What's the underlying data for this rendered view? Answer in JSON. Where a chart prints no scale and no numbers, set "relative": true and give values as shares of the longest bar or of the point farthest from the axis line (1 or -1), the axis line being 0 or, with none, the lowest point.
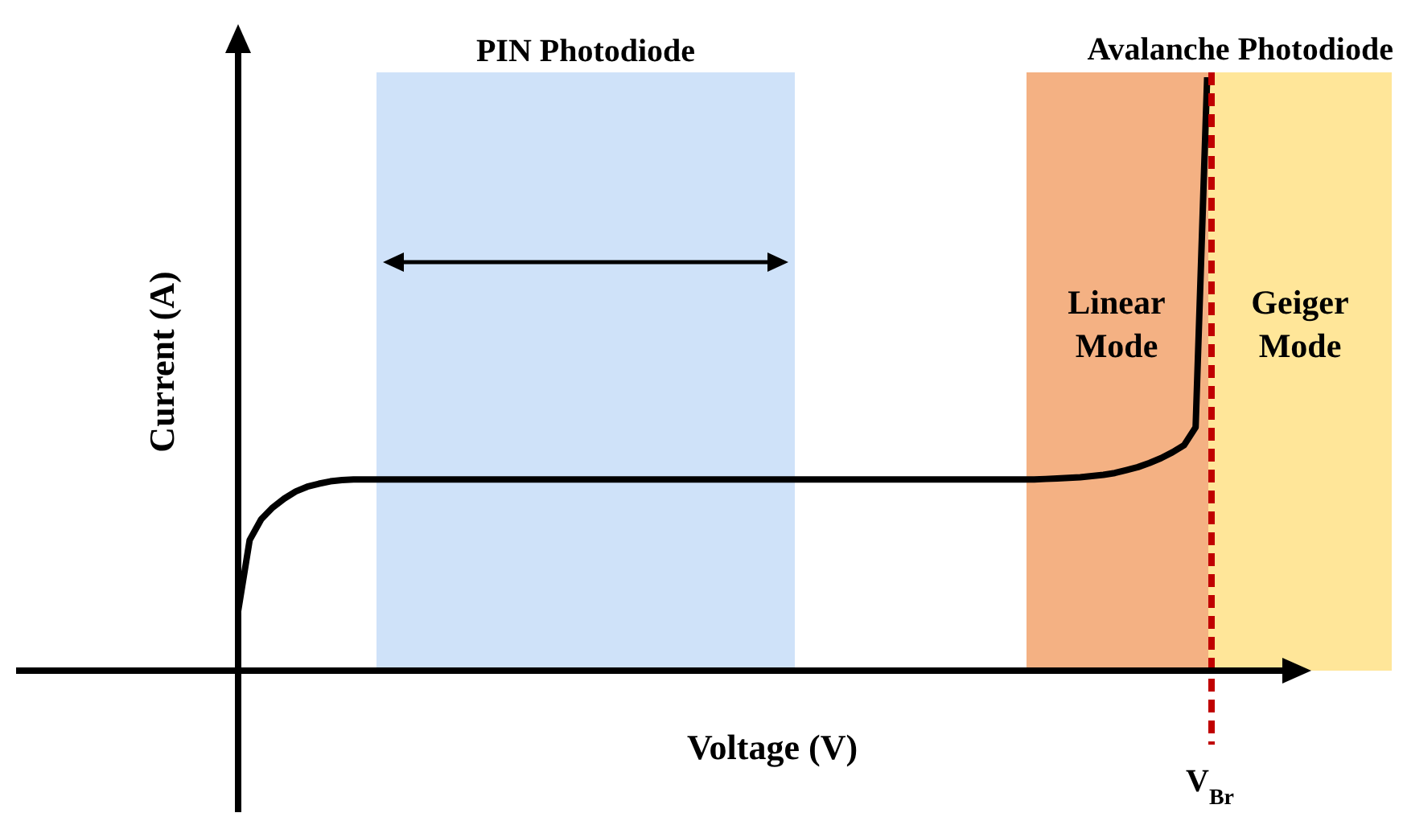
{
  "chart_data": {
    "type": "line",
    "relative": true,
    "xlabel": "Voltage (V)",
    "ylabel": "Current (A)",
    "tick_labels": false,
    "marker": "none",
    "line_style": "solid",
    "categories": [
      null,
      null,
      null,
      null,
      null,
      null,
      null,
      null,
      null,
      null,
      null,
      null,
      null,
      null,
      null,
      null,
      null,
      null,
      null,
      null,
      null,
      null,
      null,
      null,
      null,
      null,
      null,
      null,
      null,
      null,
      null,
      null,
      null,
      null,
      null,
      null,
      null,
      null,
      null,
      null,
      null,
      null,
      null,
      null,
      null,
      null,
      null,
      null,
      null,
      null,
      null,
      null,
      null,
      null,
      null,
      null,
      null,
      null,
      null,
      null,
      null,
      null,
      null,
      null,
      null,
      null,
      null,
      null,
      null,
      null,
      null,
      null,
      null,
      null,
      null,
      null,
      null,
      null,
      null,
      null,
      null,
      null,
      null,
      null,
      null,
      null,
      null,
      null,
      null,
      null,
      null,
      null,
      null,
      null,
      null,
      null,
      null,
      null,
      null,
      null,
      null
    ],
    "series": [
      {
        "color": "#000000",
        "values": [
          0.1,
          0.22,
          0.255,
          0.275,
          0.29,
          0.302,
          0.31,
          0.315,
          0.319,
          0.321,
          0.322,
          0.322,
          0.322,
          0.322,
          0.322,
          0.322,
          0.322,
          0.322,
          0.322,
          0.322,
          0.322,
          0.322,
          0.322,
          0.322,
          0.322,
          0.322,
          0.322,
          0.322,
          0.322,
          0.322,
          0.322,
          0.322,
          0.322,
          0.322,
          0.322,
          0.322,
          0.322,
          0.322,
          0.322,
          0.322,
          0.322,
          0.322,
          0.322,
          0.322,
          0.322,
          0.322,
          0.322,
          0.322,
          0.322,
          0.322,
          0.322,
          0.322,
          0.322,
          0.322,
          0.322,
          0.322,
          0.322,
          0.322,
          0.322,
          0.322,
          0.322,
          0.322,
          0.322,
          0.322,
          0.322,
          0.322,
          0.322,
          0.322,
          0.322,
          0.322,
          0.323,
          0.324,
          0.325,
          0.326,
          0.328,
          0.33,
          0.333,
          0.338,
          0.343,
          0.35,
          0.358,
          0.368,
          0.38,
          0.41,
          1.0,
          null,
          null,
          null,
          null,
          null,
          null,
          null,
          null,
          null,
          null,
          null,
          null,
          null,
          null,
          null,
          null
        ]
      }
    ],
    "annotations": [
      "PIN Photodiode",
      "Avalanche Photodiode",
      "Linear Mode",
      "Geiger Mode",
      "V$_{Br}$"
    ]
  }
}
